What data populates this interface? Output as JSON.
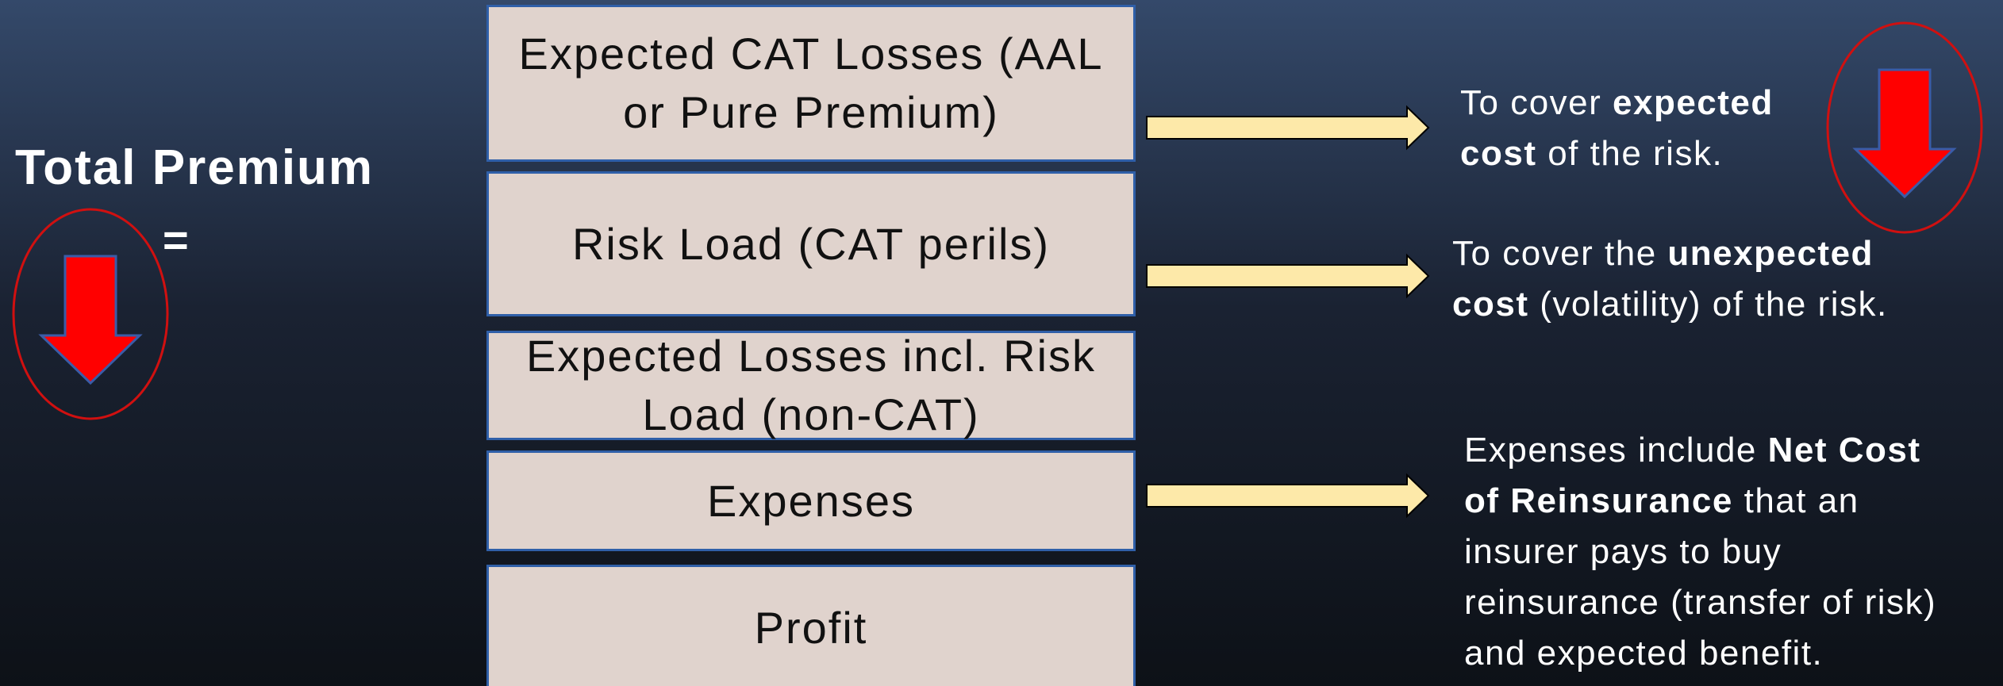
{
  "left": {
    "title": "Total Premium",
    "equals": "="
  },
  "boxes": [
    {
      "lines": [
        "Expected CAT Losses (AAL",
        "or Pure Premium)"
      ]
    },
    {
      "lines": [
        "Risk Load (CAT perils)"
      ]
    },
    {
      "lines": [
        "Expected Losses incl. Risk",
        "Load (non-CAT)"
      ]
    },
    {
      "lines": [
        "Expenses"
      ]
    },
    {
      "lines": [
        "Profit"
      ]
    }
  ],
  "notes": [
    {
      "lines": [
        [
          {
            "text": "To cover ",
            "bold": false
          },
          {
            "text": "expected",
            "bold": true
          }
        ],
        [
          {
            "text": "cost",
            "bold": true
          },
          {
            "text": " of the risk.",
            "bold": false
          }
        ]
      ]
    },
    {
      "lines": [
        [
          {
            "text": "To cover the ",
            "bold": false
          },
          {
            "text": "unexpected",
            "bold": true
          }
        ],
        [
          {
            "text": "cost",
            "bold": true
          },
          {
            "text": " (volatility) of the risk.",
            "bold": false
          }
        ]
      ]
    },
    {
      "lines": [
        [
          {
            "text": "Expenses include ",
            "bold": false
          },
          {
            "text": "Net Cost",
            "bold": true
          }
        ],
        [
          {
            "text": "of Reinsurance",
            "bold": true
          },
          {
            "text": " that an",
            "bold": false
          }
        ],
        [
          {
            "text": "insurer pays to buy",
            "bold": false
          }
        ],
        [
          {
            "text": "reinsurance (transfer of risk)",
            "bold": false
          }
        ],
        [
          {
            "text": "and expected benefit.",
            "bold": false
          }
        ]
      ]
    }
  ]
}
